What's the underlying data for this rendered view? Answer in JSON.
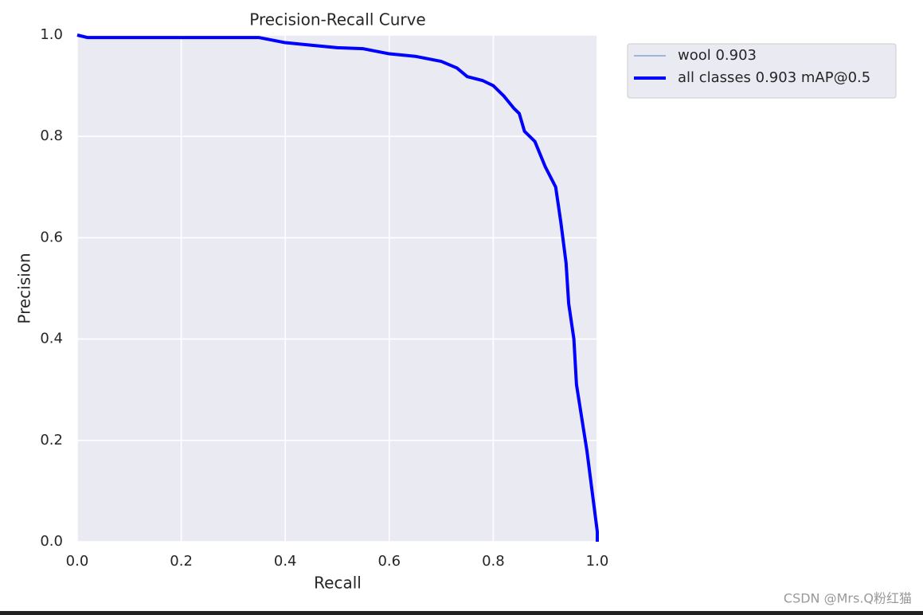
{
  "chart_data": {
    "type": "line",
    "title": "Precision-Recall Curve",
    "x_label": "Recall",
    "y_label": "Precision",
    "x": [
      0.0,
      0.02,
      0.35,
      0.4,
      0.45,
      0.5,
      0.55,
      0.6,
      0.65,
      0.7,
      0.73,
      0.75,
      0.78,
      0.8,
      0.82,
      0.84,
      0.85,
      0.86,
      0.88,
      0.9,
      0.91,
      0.92,
      0.93,
      0.94,
      0.945,
      0.955,
      0.96,
      0.98,
      1.0,
      1.0
    ],
    "series": [
      {
        "name": "wool 0.903",
        "color": "#5b7fc4",
        "width": 1,
        "values": [
          1.0,
          0.995,
          0.995,
          0.985,
          0.98,
          0.975,
          0.973,
          0.963,
          0.958,
          0.948,
          0.935,
          0.918,
          0.91,
          0.9,
          0.88,
          0.855,
          0.845,
          0.81,
          0.79,
          0.74,
          0.72,
          0.7,
          0.63,
          0.55,
          0.47,
          0.4,
          0.31,
          0.18,
          0.02,
          0.0
        ]
      },
      {
        "name": "all classes 0.903 mAP@0.5",
        "color": "#0000ff",
        "width": 4,
        "values": [
          1.0,
          0.995,
          0.995,
          0.985,
          0.98,
          0.975,
          0.973,
          0.963,
          0.958,
          0.948,
          0.935,
          0.918,
          0.91,
          0.9,
          0.88,
          0.855,
          0.845,
          0.81,
          0.79,
          0.74,
          0.72,
          0.7,
          0.63,
          0.55,
          0.47,
          0.4,
          0.31,
          0.18,
          0.02,
          0.0
        ]
      }
    ],
    "xlim": [
      0,
      1
    ],
    "ylim": [
      0,
      1
    ],
    "xticks": [
      {
        "value": 0,
        "label": "0.0"
      },
      {
        "value": 0.2,
        "label": "0.2"
      },
      {
        "value": 0.4,
        "label": "0.4"
      },
      {
        "value": 0.6,
        "label": "0.6"
      },
      {
        "value": 0.8,
        "label": "0.8"
      },
      {
        "value": 1,
        "label": "1.0"
      }
    ],
    "yticks": [
      {
        "value": 0,
        "label": "0.0"
      },
      {
        "value": 0.2,
        "label": "0.2"
      },
      {
        "value": 0.4,
        "label": "0.4"
      },
      {
        "value": 0.6,
        "label": "0.6"
      },
      {
        "value": 0.8,
        "label": "0.8"
      },
      {
        "value": 1,
        "label": "1.0"
      }
    ],
    "grid": true,
    "legend": "outside upper right"
  },
  "watermark": "CSDN @Mrs.Q粉红猫"
}
